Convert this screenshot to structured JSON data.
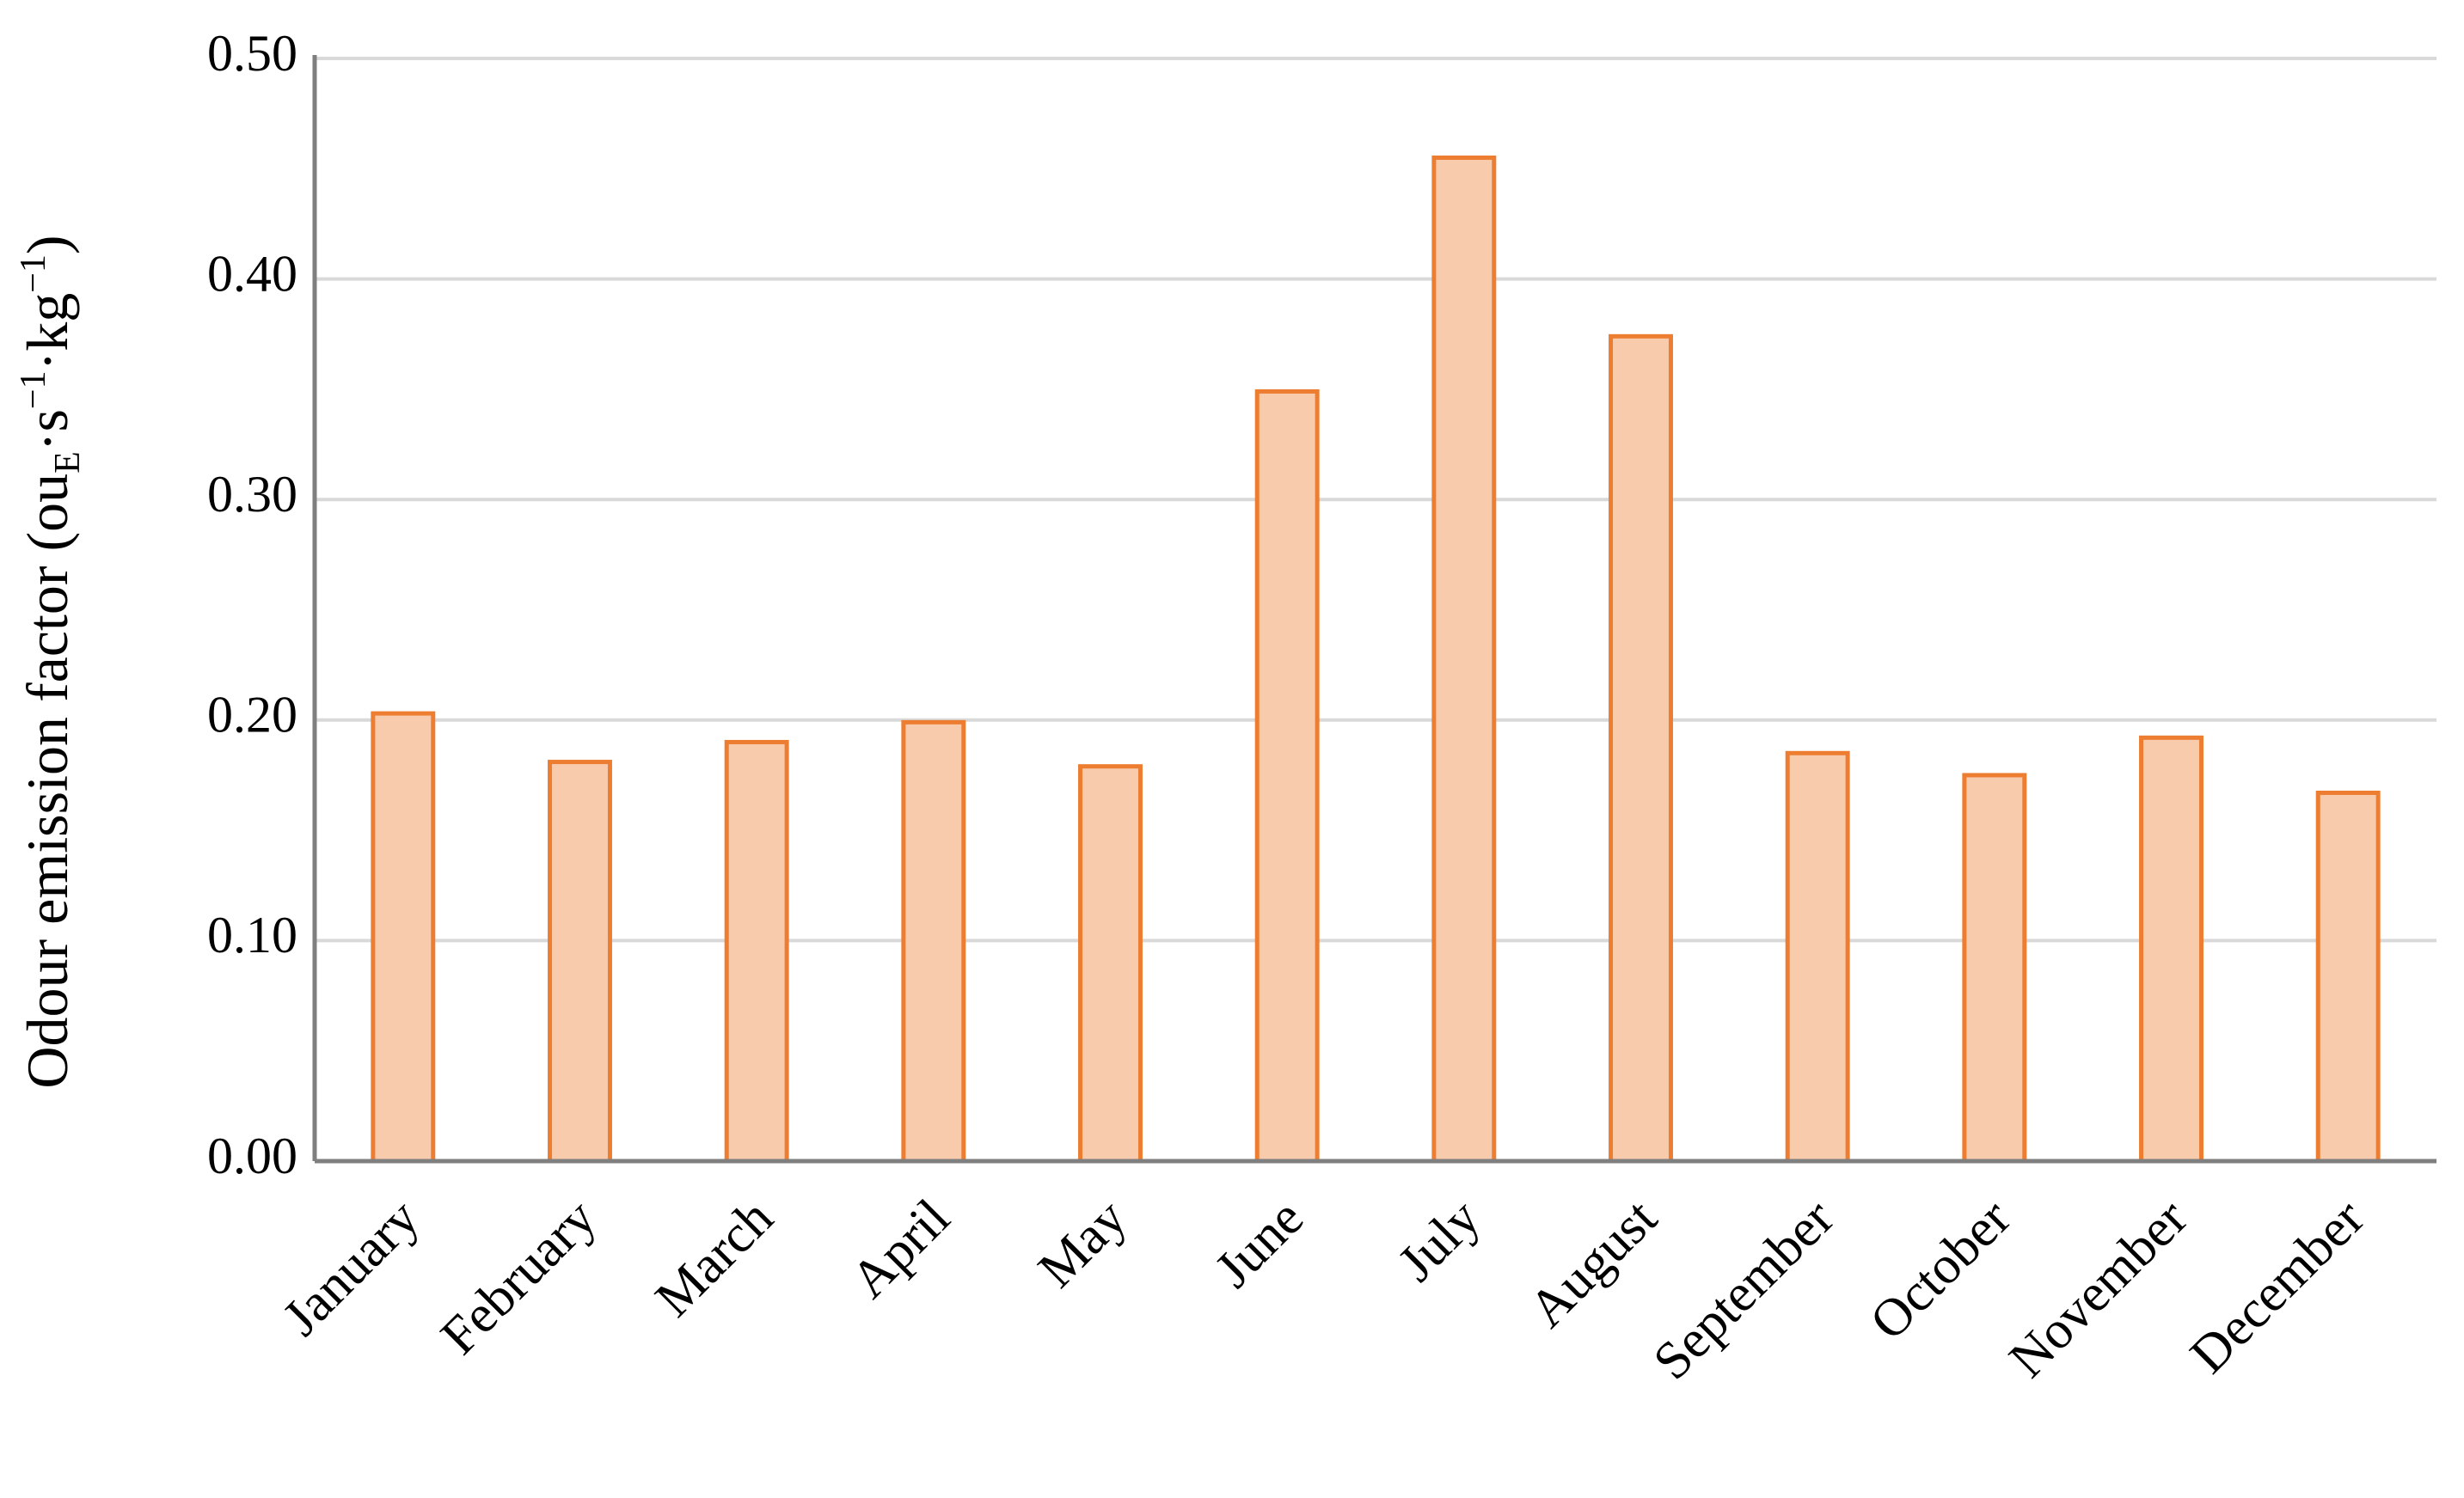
{
  "chart_data": {
    "type": "bar",
    "y_label": [
      "Odour emission factor (ou",
      "E",
      "·s",
      "−1",
      "·kg",
      "−1",
      ")"
    ],
    "categories": [
      "January",
      "February",
      "March",
      "April",
      "May",
      "June",
      "July",
      "August",
      "September",
      "October",
      "November",
      "December"
    ],
    "values": [
      0.203,
      0.181,
      0.19,
      0.199,
      0.179,
      0.349,
      0.455,
      0.374,
      0.185,
      0.175,
      0.192,
      0.167
    ],
    "color": "#f8cbad",
    "edge_color": "#ed7d31",
    "ylim": [
      0,
      0.5
    ],
    "yticks": [
      {
        "value": 0,
        "label": "0.00"
      },
      {
        "value": 0.1,
        "label": "0.10"
      },
      {
        "value": 0.2,
        "label": "0.20"
      },
      {
        "value": 0.3,
        "label": "0.30"
      },
      {
        "value": 0.4,
        "label": "0.40"
      },
      {
        "value": 0.5,
        "label": "0.50"
      }
    ],
    "grid": true
  }
}
